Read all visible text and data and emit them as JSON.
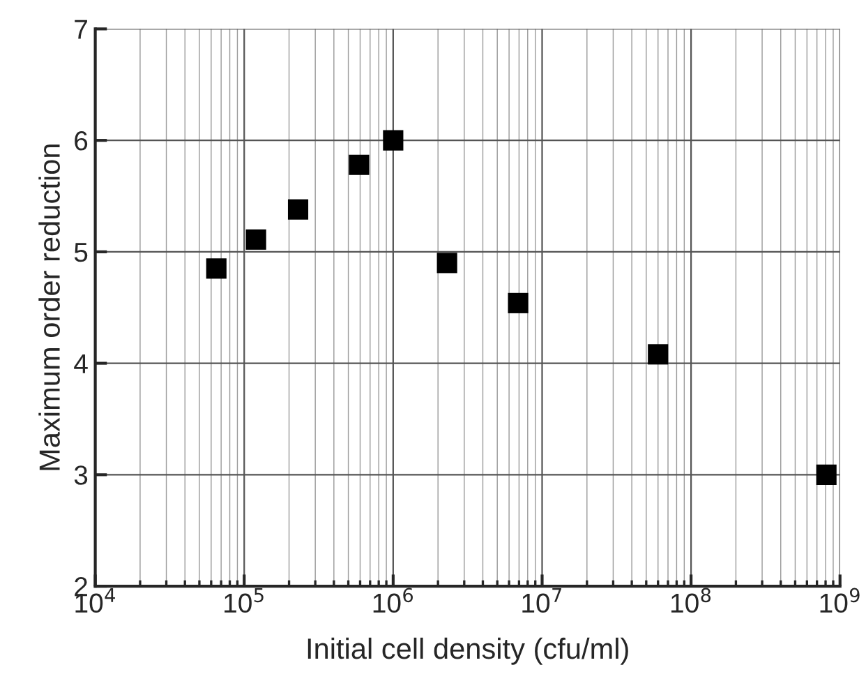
{
  "chart_data": {
    "type": "scatter",
    "xlabel": "Initial cell density (cfu/ml)",
    "ylabel": "Maximum order reduction",
    "x": [
      65000,
      120000,
      230000,
      590000,
      1000000,
      2300000,
      6900000,
      60000000,
      810000000
    ],
    "series": [
      {
        "color": "#000000",
        "values": [
          4.85,
          5.11,
          5.38,
          5.78,
          6.0,
          4.9,
          4.54,
          4.08,
          3.0
        ]
      }
    ],
    "log": "x",
    "marker": "square",
    "grid": true,
    "xlim": [
      10000,
      1000000000
    ],
    "xticks": [
      {
        "value": 10000,
        "label": "10$^{4}$"
      },
      {
        "value": 100000,
        "label": "10$^{5}$"
      },
      {
        "value": 1000000,
        "label": "10$^{6}$"
      },
      {
        "value": 10000000,
        "label": "10$^{7}$"
      },
      {
        "value": 100000000,
        "label": "10$^{8}$"
      },
      {
        "value": 1000000000,
        "label": "10$^{9}$"
      }
    ],
    "ylim": [
      2,
      7
    ],
    "yticks": [
      2,
      3,
      4,
      5,
      6,
      7
    ]
  }
}
